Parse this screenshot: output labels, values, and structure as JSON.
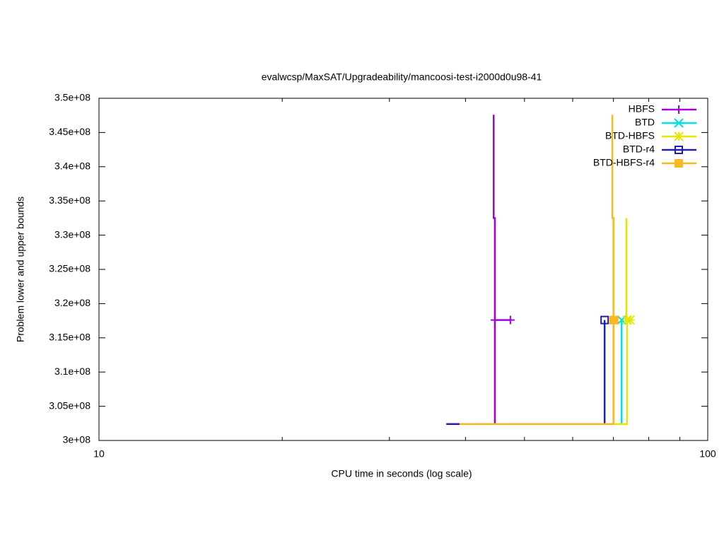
{
  "chart_data": {
    "type": "line",
    "title": "evalwcsp/MaxSAT/Upgradeability/mancoosi-test-i2000d0u98-41",
    "x_label": "CPU time in seconds (log scale)",
    "y_label": "Problem lower and upper bounds",
    "xscale": "log",
    "xlim": [
      10,
      100
    ],
    "xticks": [
      10,
      100
    ],
    "xminorticks": [
      20,
      30,
      40,
      50,
      60,
      70,
      80,
      90
    ],
    "ylim": [
      300000000,
      350000000
    ],
    "yticks": [
      {
        "value": 300000000,
        "label": "3e+08"
      },
      {
        "value": 305000000,
        "label": "3.05e+08"
      },
      {
        "value": 310000000,
        "label": "3.1e+08"
      },
      {
        "value": 315000000,
        "label": "3.15e+08"
      },
      {
        "value": 320000000,
        "label": "3.2e+08"
      },
      {
        "value": 325000000,
        "label": "3.25e+08"
      },
      {
        "value": 330000000,
        "label": "3.3e+08"
      },
      {
        "value": 335000000,
        "label": "3.35e+08"
      },
      {
        "value": 340000000,
        "label": "3.4e+08"
      },
      {
        "value": 345000000,
        "label": "3.45e+08"
      },
      {
        "value": 350000000,
        "label": "3.5e+08"
      }
    ],
    "legend": "top-right",
    "series": [
      {
        "name": "HBFS",
        "color": "#a000e0",
        "marker": "plus",
        "x": [
          44.5,
          44.5,
          44.7,
          44.7,
          47.4,
          null,
          44.7,
          44.7
        ],
        "values": [
          347600000,
          332500000,
          332500000,
          317600000,
          317600000,
          null,
          302400000,
          317600000
        ]
      },
      {
        "name": "BTD",
        "color": "#00e0e0",
        "marker": "cross",
        "x": [
          72.2,
          72.2
        ],
        "values": [
          302400000,
          317600000
        ]
      },
      {
        "name": "BTD-HBFS",
        "color": "#e6e600",
        "marker": "star",
        "x": [
          73.5,
          73.5,
          74.5,
          null,
          39.1,
          73.7,
          73.7
        ],
        "values": [
          332500000,
          317600000,
          317600000,
          null,
          302400000,
          302400000,
          317600000
        ]
      },
      {
        "name": "BTD-r4",
        "color": "#2020b0",
        "marker": "square",
        "x": [
          37.2,
          67.7,
          67.7
        ],
        "values": [
          302400000,
          302400000,
          317600000
        ]
      },
      {
        "name": "BTD-HBFS-r4",
        "color": "#f8b820",
        "marker": "filled-square",
        "x": [
          69.7,
          69.7,
          70.0,
          70.0,
          70.2,
          null,
          39.1,
          70.0,
          70.0
        ],
        "values": [
          347600000,
          332500000,
          332500000,
          317600000,
          317600000,
          null,
          302400000,
          302400000,
          317600000
        ]
      }
    ]
  }
}
